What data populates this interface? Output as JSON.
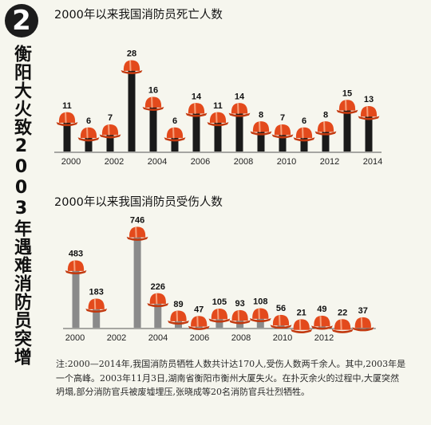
{
  "badge": "2",
  "side_title": "衡阳大火致2003年遇难消防员突增",
  "note": "注:2000—2014年,我国消防员牺牲人数共计达170人,受伤人数两千余人。其中,2003年是一个高峰。2003年11月3日,湖南省衡阳市衡州大厦失火。在扑灭余火的过程中,大厦突然坍塌,部分消防官兵被废墟埋压,张晓成等20名消防官兵壮烈牺牲。",
  "colors": {
    "death_bar": "#1a1a1a",
    "injury_bar": "#8a8a8a",
    "helmet": "#e34a1c",
    "helmet_brim": "#c2390f"
  },
  "chart_data": [
    {
      "type": "bar",
      "title": "2000年以来我国消防员死亡人数",
      "categories": [
        "2000",
        "2001",
        "2002",
        "2003",
        "2004",
        "2005",
        "2006",
        "2007",
        "2008",
        "2009",
        "2010",
        "2011",
        "2012",
        "2013",
        "2014"
      ],
      "tick_labels": [
        "2000",
        "2002",
        "2004",
        "2006",
        "2008",
        "2010",
        "2012",
        "2014"
      ],
      "values": [
        11,
        6,
        7,
        28,
        16,
        6,
        14,
        11,
        14,
        8,
        7,
        6,
        8,
        15,
        13
      ],
      "ylim": [
        0,
        30
      ]
    },
    {
      "type": "bar",
      "title": "2000年以来我国消防员受伤人数",
      "categories": [
        "2000",
        "2001",
        "2002",
        "2003",
        "2004",
        "2005",
        "2006",
        "2007",
        "2008",
        "2009",
        "2010",
        "2011",
        "2012",
        "2013",
        "2014"
      ],
      "tick_labels": [
        "2000",
        "2002",
        "2004",
        "2006",
        "2008",
        "2010",
        "2012"
      ],
      "values": [
        483,
        183,
        null,
        746,
        226,
        89,
        47,
        105,
        93,
        108,
        56,
        21,
        49,
        22,
        37
      ],
      "ylim": [
        0,
        800
      ]
    }
  ]
}
